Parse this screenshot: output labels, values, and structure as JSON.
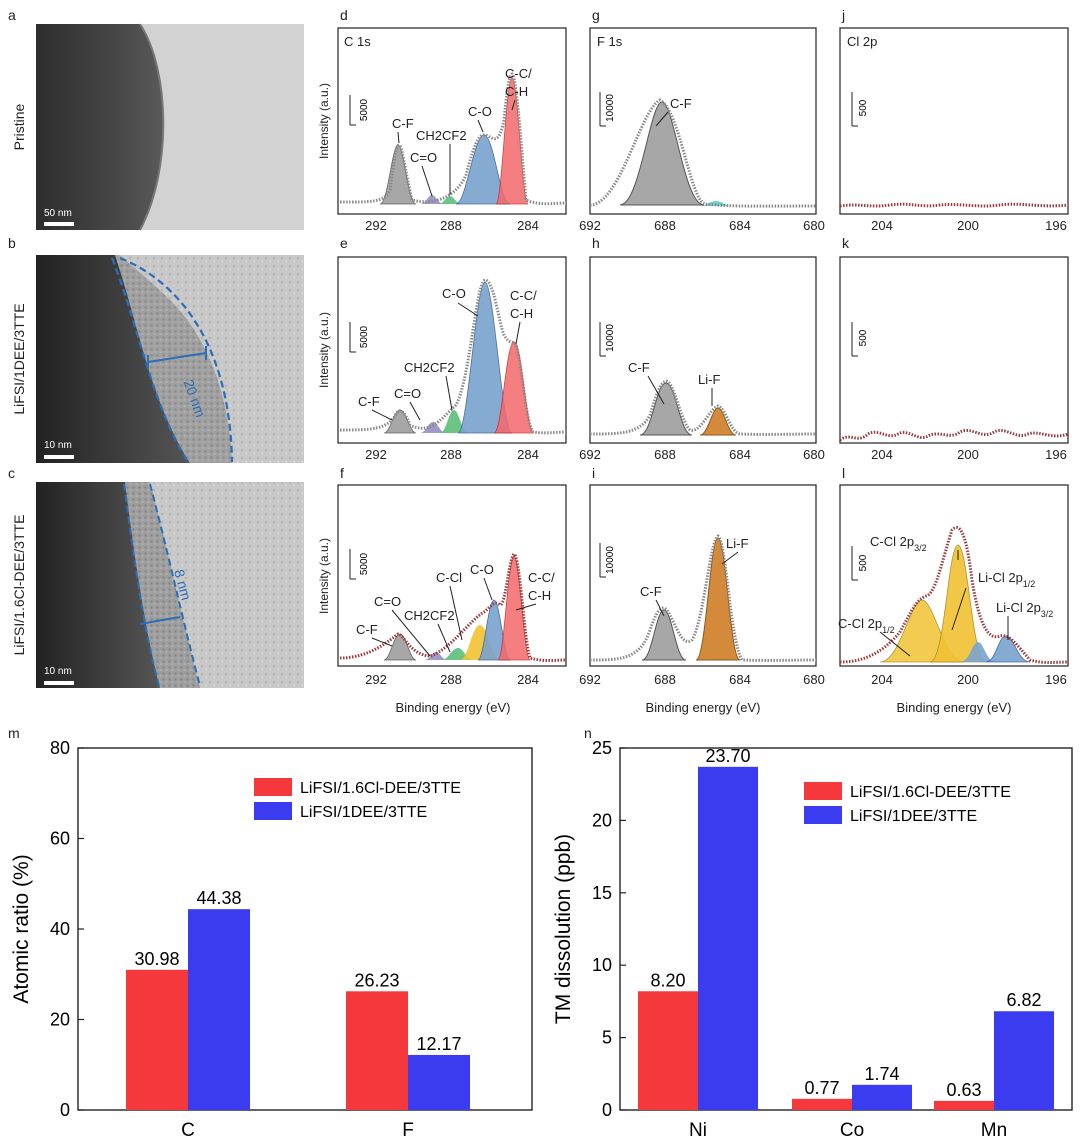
{
  "panel_letters": {
    "a": "a",
    "b": "b",
    "c": "c",
    "d": "d",
    "e": "e",
    "f": "f",
    "g": "g",
    "h": "h",
    "i": "i",
    "j": "j",
    "k": "k",
    "l": "l",
    "m": "m",
    "n": "n"
  },
  "tem": {
    "row_labels": [
      "Pristine",
      "LiFSI/1DEE/3TTE",
      "LiFSI/1.6Cl-DEE/3TTE"
    ],
    "scale_bars": [
      "50 nm",
      "10 nm",
      "10 nm"
    ],
    "thickness": [
      "20 nm",
      "8 nm"
    ]
  },
  "xps": {
    "ylabel": "Intensity (a.u.)",
    "xlabel": "Binding energy (eV)",
    "columns": [
      "C 1s",
      "F 1s",
      "Cl 2p"
    ],
    "scale_labels": {
      "C": "5000",
      "F": "10000",
      "Cl": "500"
    },
    "x_ticks": {
      "C": [
        "292",
        "288",
        "284"
      ],
      "F": [
        "692",
        "688",
        "684",
        "680"
      ],
      "Cl": [
        "204",
        "200",
        "196"
      ]
    },
    "peak_labels": {
      "C_CC": [
        "C-C/",
        "C-H"
      ],
      "C_CO": "C-O",
      "C_CF": "C-F",
      "C_C_O": "C=O",
      "C_CH2CF2": "CH2CF2",
      "C_CCl": "C-Cl",
      "F_CF": "C-F",
      "F_LiF": "Li-F",
      "Cl_CCl32": "C-Cl 2p3/2",
      "Cl_LiCl12": "Li-Cl 2p1/2",
      "Cl_LiCl32": "Li-Cl 2p3/2",
      "Cl_CCl12": "C-Cl 2p1/2"
    }
  },
  "colors": {
    "red": "#f4383b",
    "blue": "#3b3bf0",
    "gray": "#a7a7a7",
    "orange": "#d38a3a",
    "yellow": "#f1c232",
    "lightblue": "#7aa3cf",
    "green": "#5cbf7a",
    "purple": "#8a80b8"
  },
  "chart_data": [
    {
      "type": "bar",
      "title": "",
      "panel": "m",
      "xlabel": "",
      "ylabel": "Atomic ratio (%)",
      "categories": [
        "C",
        "F"
      ],
      "series": [
        {
          "name": "LiFSI/1.6Cl-DEE/3TTE",
          "values": [
            30.98,
            26.23
          ],
          "labels": [
            "30.98",
            "26.23"
          ]
        },
        {
          "name": "LiFSI/1DEE/3TTE",
          "values": [
            44.38,
            12.17
          ],
          "labels": [
            "44.38",
            "12.17"
          ]
        }
      ],
      "ylim": [
        0,
        80
      ],
      "yticks": [
        0,
        20,
        40,
        60,
        80
      ],
      "legend": "top-right"
    },
    {
      "type": "bar",
      "title": "",
      "panel": "n",
      "xlabel": "",
      "ylabel": "TM dissolution (ppb)",
      "categories": [
        "Ni",
        "Co",
        "Mn"
      ],
      "series": [
        {
          "name": "LiFSI/1.6Cl-DEE/3TTE",
          "values": [
            8.2,
            0.77,
            0.63
          ],
          "labels": [
            "8.20",
            "0.77",
            "0.63"
          ]
        },
        {
          "name": "LiFSI/1DEE/3TTE",
          "values": [
            23.7,
            1.74,
            6.82
          ],
          "labels": [
            "23.70",
            "1.74",
            "6.82"
          ]
        }
      ],
      "ylim": [
        0,
        25
      ],
      "yticks": [
        0,
        5,
        10,
        15,
        20,
        25
      ],
      "legend": "top-right"
    }
  ]
}
